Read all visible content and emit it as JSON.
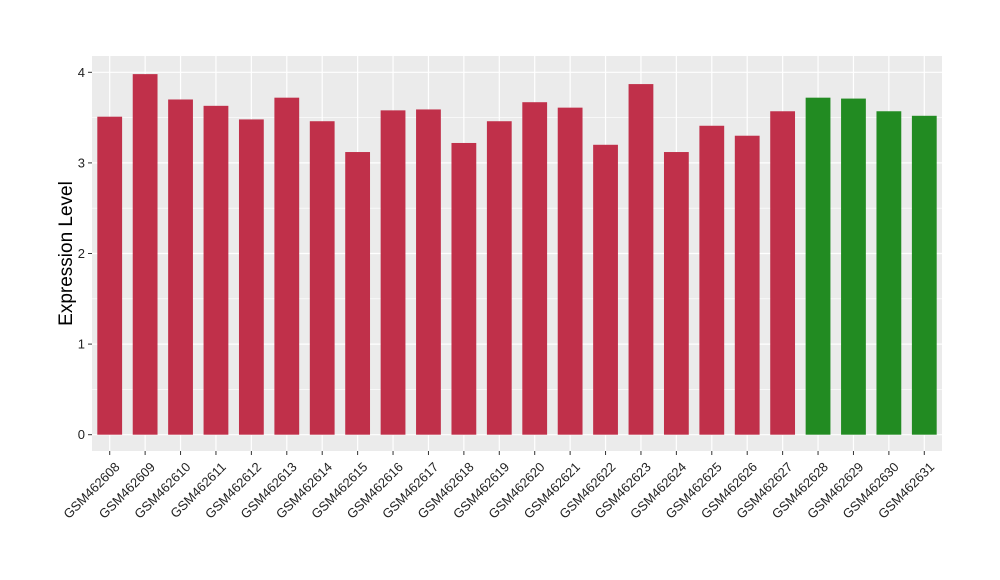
{
  "chart_data": {
    "type": "bar",
    "title": "",
    "xlabel": "",
    "ylabel": "Expression Level",
    "ylim": [
      -0.18,
      4.18
    ],
    "yticks": [
      0,
      1,
      2,
      3,
      4
    ],
    "ytick_labels": [
      "0",
      "1",
      "2",
      "3",
      "4"
    ],
    "grid": true,
    "legend": "none",
    "categories": [
      "GSM462608",
      "GSM462609",
      "GSM462610",
      "GSM462611",
      "GSM462612",
      "GSM462613",
      "GSM462614",
      "GSM462615",
      "GSM462616",
      "GSM462617",
      "GSM462618",
      "GSM462619",
      "GSM462620",
      "GSM462621",
      "GSM462622",
      "GSM462623",
      "GSM462624",
      "GSM462625",
      "GSM462626",
      "GSM462627",
      "GSM462628",
      "GSM462629",
      "GSM462630",
      "GSM462631"
    ],
    "values": [
      3.51,
      3.98,
      3.7,
      3.63,
      3.48,
      3.72,
      3.46,
      3.12,
      3.58,
      3.59,
      3.22,
      3.46,
      3.67,
      3.61,
      3.2,
      3.87,
      3.12,
      3.41,
      3.3,
      3.57,
      3.72,
      3.71,
      3.57,
      3.52
    ],
    "bar_colors": [
      "#c0304a",
      "#c0304a",
      "#c0304a",
      "#c0304a",
      "#c0304a",
      "#c0304a",
      "#c0304a",
      "#c0304a",
      "#c0304a",
      "#c0304a",
      "#c0304a",
      "#c0304a",
      "#c0304a",
      "#c0304a",
      "#c0304a",
      "#c0304a",
      "#c0304a",
      "#c0304a",
      "#c0304a",
      "#c0304a",
      "#228b22",
      "#228b22",
      "#228b22",
      "#228b22"
    ],
    "panel_background": "#ebebeb",
    "gridline_color": "#ffffff"
  }
}
